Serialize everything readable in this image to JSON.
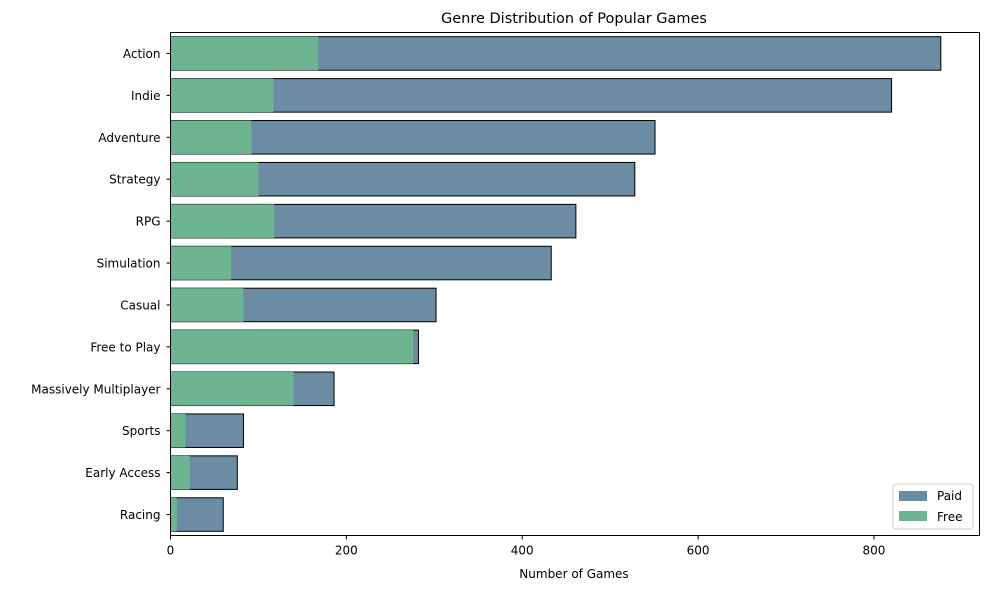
{
  "chart_data": {
    "type": "bar",
    "orientation": "horizontal",
    "title": "Genre Distribution of Popular Games",
    "xlabel": "Number of Games",
    "ylabel": "",
    "xlim": [
      0,
      920
    ],
    "xticks": [
      0,
      200,
      400,
      600,
      800
    ],
    "categories": [
      "Action",
      "Indie",
      "Adventure",
      "Strategy",
      "RPG",
      "Simulation",
      "Casual",
      "Free to Play",
      "Massively Multiplayer",
      "Sports",
      "Early Access",
      "Racing"
    ],
    "series": [
      {
        "name": "Paid",
        "color": "#6b8ca3",
        "values": [
          876,
          820,
          551,
          528,
          461,
          433,
          302,
          282,
          186,
          83,
          76,
          60
        ]
      },
      {
        "name": "Free",
        "color": "#6db592",
        "values": [
          168,
          117,
          92,
          100,
          118,
          69,
          83,
          276,
          140,
          17,
          22,
          7
        ]
      }
    ],
    "grid": false,
    "legend_position": "bottom-right"
  }
}
